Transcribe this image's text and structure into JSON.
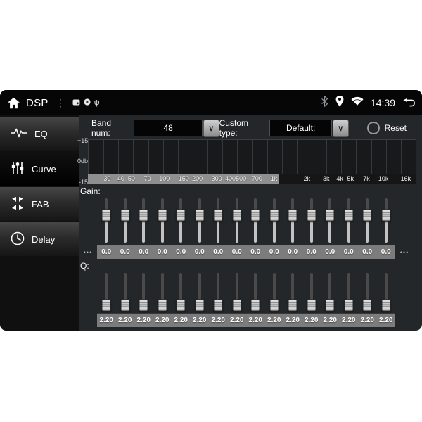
{
  "statusbar": {
    "title": "DSP",
    "menu_dots": "⋮",
    "usb_glyph": "ψ",
    "time": "14:39"
  },
  "sidebar": {
    "items": [
      {
        "label": "EQ",
        "icon": "waveform-icon",
        "selected": false
      },
      {
        "label": "Curve",
        "icon": "sliders-icon",
        "selected": true
      },
      {
        "label": "FAB",
        "icon": "fab-arrows-icon",
        "selected": false
      },
      {
        "label": "Delay",
        "icon": "clock-icon",
        "selected": false
      }
    ]
  },
  "controls": {
    "band_num_label": "Band num:",
    "band_num_value": "48",
    "custom_type_label": "Custom type:",
    "custom_type_value": "Default:",
    "reset_label": "Reset"
  },
  "eq_graph": {
    "y_axis_labels": [
      "+15",
      "0db",
      "-15"
    ],
    "curve_db": 0,
    "curve_color": "#2e6b7a",
    "grid_columns": 22,
    "freq_min_hz": 20,
    "freq_max_hz": 20000,
    "visible_range_pct": 58,
    "freq_ticks": [
      {
        "label": "30",
        "hz": 30
      },
      {
        "label": "40",
        "hz": 40
      },
      {
        "label": "50",
        "hz": 50
      },
      {
        "label": "70",
        "hz": 70
      },
      {
        "label": "100",
        "hz": 100
      },
      {
        "label": "150",
        "hz": 150
      },
      {
        "label": "200",
        "hz": 200
      },
      {
        "label": "300",
        "hz": 300
      },
      {
        "label": "400",
        "hz": 400
      },
      {
        "label": "500",
        "hz": 500
      },
      {
        "label": "700",
        "hz": 700
      },
      {
        "label": "1k",
        "hz": 1000
      },
      {
        "label": "2k",
        "hz": 2000
      },
      {
        "label": "3k",
        "hz": 3000
      },
      {
        "label": "4k",
        "hz": 4000
      },
      {
        "label": "5k",
        "hz": 5000
      },
      {
        "label": "7k",
        "hz": 7000
      },
      {
        "label": "10k",
        "hz": 10000
      },
      {
        "label": "16k",
        "hz": 16000
      }
    ]
  },
  "gain": {
    "label": "Gain:",
    "more_left": "•••",
    "more_right": "•••",
    "slider_position_pct": 38,
    "values": [
      "0.0",
      "0.0",
      "0.0",
      "0.0",
      "0.0",
      "0.0",
      "0.0",
      "0.0",
      "0.0",
      "0.0",
      "0.0",
      "0.0",
      "0.0",
      "0.0",
      "0.0",
      "0.0"
    ]
  },
  "q": {
    "label": "Q:",
    "slider_position_pct": 82,
    "values": [
      "2.20",
      "2.20",
      "2.20",
      "2.20",
      "2.20",
      "2.20",
      "2.20",
      "2.20",
      "2.20",
      "2.20",
      "2.20",
      "2.20",
      "2.20",
      "2.20",
      "2.20",
      "2.20"
    ]
  }
}
